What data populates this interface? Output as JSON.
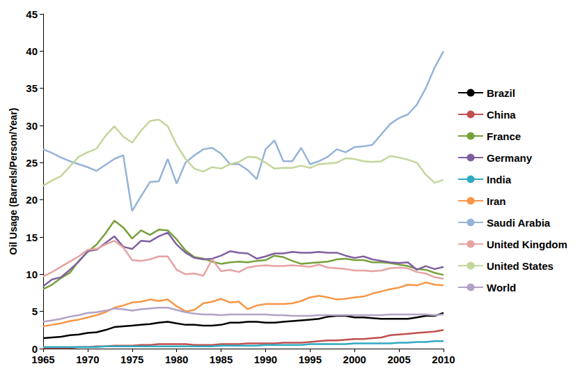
{
  "chart_data": {
    "type": "line",
    "ylabel": "Oil Usage (Barrels/Person/Year)",
    "x": [
      1965,
      1966,
      1967,
      1968,
      1969,
      1970,
      1971,
      1972,
      1973,
      1974,
      1975,
      1976,
      1977,
      1978,
      1979,
      1980,
      1981,
      1982,
      1983,
      1984,
      1985,
      1986,
      1987,
      1988,
      1989,
      1990,
      1991,
      1992,
      1993,
      1994,
      1995,
      1996,
      1997,
      1998,
      1999,
      2000,
      2001,
      2002,
      2003,
      2004,
      2005,
      2006,
      2007,
      2008,
      2009,
      2010
    ],
    "xlim": [
      1965,
      2010
    ],
    "xticks": [
      1965,
      1970,
      1975,
      1980,
      1985,
      1990,
      1995,
      2000,
      2005,
      2010
    ],
    "ylim": [
      0,
      45
    ],
    "yticks": [
      0,
      5,
      10,
      15,
      20,
      25,
      30,
      35,
      40,
      45
    ],
    "grid": false,
    "legend": "right",
    "series": [
      {
        "name": "Brazil",
        "color": "#000000",
        "values": [
          1.4,
          1.5,
          1.6,
          1.8,
          1.9,
          2.1,
          2.2,
          2.5,
          2.9,
          3.0,
          3.1,
          3.2,
          3.3,
          3.5,
          3.6,
          3.4,
          3.2,
          3.2,
          3.1,
          3.1,
          3.2,
          3.5,
          3.5,
          3.6,
          3.6,
          3.5,
          3.5,
          3.6,
          3.7,
          3.8,
          3.9,
          4.0,
          4.3,
          4.4,
          4.4,
          4.2,
          4.2,
          4.1,
          4.0,
          4.0,
          4.0,
          4.0,
          4.2,
          4.4,
          4.4,
          4.8
        ]
      },
      {
        "name": "China",
        "color": "#c0504d",
        "values": [
          0.1,
          0.1,
          0.1,
          0.1,
          0.2,
          0.2,
          0.3,
          0.3,
          0.4,
          0.4,
          0.4,
          0.5,
          0.5,
          0.6,
          0.6,
          0.6,
          0.6,
          0.5,
          0.5,
          0.5,
          0.6,
          0.6,
          0.6,
          0.7,
          0.7,
          0.7,
          0.7,
          0.8,
          0.8,
          0.8,
          0.9,
          1.0,
          1.1,
          1.1,
          1.2,
          1.3,
          1.3,
          1.4,
          1.5,
          1.8,
          1.9,
          2.0,
          2.1,
          2.2,
          2.3,
          2.5
        ]
      },
      {
        "name": "France",
        "color": "#77a03a",
        "values": [
          8.0,
          8.6,
          9.5,
          10.2,
          11.8,
          13.0,
          14.0,
          15.5,
          17.2,
          16.3,
          14.8,
          15.9,
          15.3,
          16.0,
          15.9,
          14.7,
          13.2,
          12.3,
          12.1,
          11.7,
          11.4,
          11.6,
          11.7,
          11.6,
          11.8,
          11.9,
          12.5,
          12.3,
          11.8,
          11.4,
          11.5,
          11.6,
          11.7,
          12.0,
          12.1,
          11.9,
          11.9,
          11.6,
          11.6,
          11.5,
          11.3,
          11.1,
          10.7,
          10.6,
          10.2,
          9.9
        ]
      },
      {
        "name": "Germany",
        "color": "#7f5fa0",
        "values": [
          8.4,
          9.3,
          9.6,
          10.6,
          11.7,
          13.1,
          13.3,
          14.2,
          15.1,
          13.7,
          13.4,
          14.5,
          14.4,
          15.1,
          15.6,
          14.0,
          12.9,
          12.2,
          12.0,
          12.1,
          12.5,
          13.1,
          12.9,
          12.8,
          12.1,
          12.4,
          12.8,
          12.8,
          13.0,
          12.9,
          12.9,
          13.0,
          12.9,
          12.9,
          12.5,
          12.2,
          12.4,
          12.0,
          11.8,
          11.6,
          11.5,
          11.6,
          10.6,
          11.1,
          10.7,
          11.0
        ]
      },
      {
        "name": "India",
        "color": "#31a9c4",
        "values": [
          0.2,
          0.2,
          0.2,
          0.2,
          0.2,
          0.2,
          0.2,
          0.3,
          0.3,
          0.3,
          0.3,
          0.3,
          0.3,
          0.3,
          0.3,
          0.3,
          0.3,
          0.3,
          0.3,
          0.3,
          0.4,
          0.4,
          0.4,
          0.4,
          0.4,
          0.5,
          0.5,
          0.5,
          0.5,
          0.5,
          0.6,
          0.6,
          0.6,
          0.6,
          0.6,
          0.7,
          0.7,
          0.7,
          0.7,
          0.7,
          0.8,
          0.8,
          0.9,
          0.9,
          1.0,
          1.0
        ]
      },
      {
        "name": "Iran",
        "color": "#f79646",
        "values": [
          3.0,
          3.2,
          3.4,
          3.7,
          3.9,
          4.2,
          4.5,
          4.9,
          5.5,
          5.8,
          6.2,
          6.3,
          6.6,
          6.4,
          6.6,
          5.7,
          5.0,
          5.2,
          6.1,
          6.3,
          6.7,
          6.2,
          6.3,
          5.3,
          5.8,
          6.0,
          6.0,
          6.0,
          6.1,
          6.4,
          6.9,
          7.1,
          6.9,
          6.6,
          6.7,
          6.9,
          7.0,
          7.4,
          7.7,
          8.0,
          8.2,
          8.6,
          8.5,
          8.9,
          8.6,
          8.5
        ]
      },
      {
        "name": "Saudi Arabia",
        "color": "#95b3d7",
        "values": [
          26.8,
          26.3,
          25.7,
          25.2,
          24.8,
          24.4,
          23.9,
          24.7,
          25.5,
          26.0,
          18.5,
          20.5,
          22.4,
          22.5,
          25.5,
          22.2,
          25.0,
          26.0,
          26.8,
          27.0,
          26.2,
          24.8,
          24.8,
          24.0,
          22.8,
          26.8,
          28.0,
          25.2,
          25.2,
          27.0,
          24.8,
          25.2,
          25.8,
          26.8,
          26.4,
          27.1,
          27.2,
          27.4,
          28.8,
          30.2,
          31.0,
          31.5,
          32.8,
          35.0,
          37.8,
          40.0
        ]
      },
      {
        "name": "United Kingdom",
        "color": "#e6a3a2",
        "values": [
          9.7,
          10.3,
          11.0,
          11.7,
          12.4,
          13.3,
          13.4,
          14.0,
          14.5,
          13.6,
          11.9,
          11.8,
          12.0,
          12.4,
          12.4,
          10.6,
          10.0,
          10.1,
          9.8,
          12.0,
          10.4,
          10.6,
          10.3,
          10.9,
          11.1,
          11.2,
          11.1,
          11.1,
          11.2,
          11.1,
          11.0,
          11.3,
          10.9,
          10.8,
          10.7,
          10.5,
          10.5,
          10.4,
          10.5,
          10.8,
          10.9,
          10.8,
          10.3,
          10.1,
          9.6,
          9.4
        ]
      },
      {
        "name": "United States",
        "color": "#c3d69b",
        "values": [
          21.9,
          22.6,
          23.2,
          24.5,
          25.8,
          26.4,
          26.9,
          28.6,
          29.9,
          28.5,
          27.7,
          29.3,
          30.6,
          30.8,
          29.9,
          27.4,
          25.5,
          24.2,
          23.8,
          24.4,
          24.2,
          24.8,
          25.1,
          25.8,
          25.7,
          25.0,
          24.2,
          24.3,
          24.3,
          24.6,
          24.3,
          24.8,
          24.9,
          25.0,
          25.6,
          25.5,
          25.2,
          25.1,
          25.2,
          25.9,
          25.7,
          25.4,
          25.0,
          23.4,
          22.3,
          22.7
        ]
      },
      {
        "name": "World",
        "color": "#b3a2c7",
        "values": [
          3.6,
          3.8,
          4.0,
          4.3,
          4.5,
          4.8,
          4.9,
          5.1,
          5.4,
          5.3,
          5.1,
          5.3,
          5.4,
          5.5,
          5.5,
          5.2,
          4.9,
          4.7,
          4.6,
          4.6,
          4.5,
          4.6,
          4.6,
          4.6,
          4.6,
          4.6,
          4.5,
          4.5,
          4.4,
          4.4,
          4.4,
          4.5,
          4.5,
          4.5,
          4.5,
          4.5,
          4.5,
          4.5,
          4.5,
          4.6,
          4.6,
          4.6,
          4.6,
          4.6,
          4.5,
          4.6
        ]
      }
    ]
  }
}
